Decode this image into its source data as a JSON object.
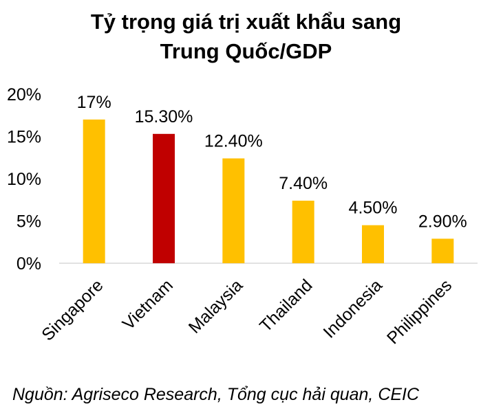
{
  "chart_data": {
    "type": "bar",
    "title": [
      "Tỷ trọng giá trị xuất khẩu sang",
      "Trung Quốc/GDP"
    ],
    "categories": [
      "Singapore",
      "Vietnam",
      "Malaysia",
      "Thailand",
      "Indonesia",
      "Philippines"
    ],
    "values": [
      17,
      15.3,
      12.4,
      7.4,
      4.5,
      2.9
    ],
    "data_labels": [
      "17%",
      "15.30%",
      "12.40%",
      "7.40%",
      "4.50%",
      "2.90%"
    ],
    "highlight_category": "Vietnam",
    "ylim": [
      0,
      20
    ],
    "yticks": [
      0,
      5,
      10,
      15,
      20
    ],
    "ytick_labels": [
      "0%",
      "5%",
      "10%",
      "15%",
      "20%"
    ],
    "grid": false,
    "legend": false,
    "colors": {
      "default_bar": "#FFC000",
      "highlight_bar": "#C00000",
      "axis": "#D9D9D9"
    }
  },
  "source": "Nguồn: Agriseco Research, Tổng cục hải quan, CEIC"
}
